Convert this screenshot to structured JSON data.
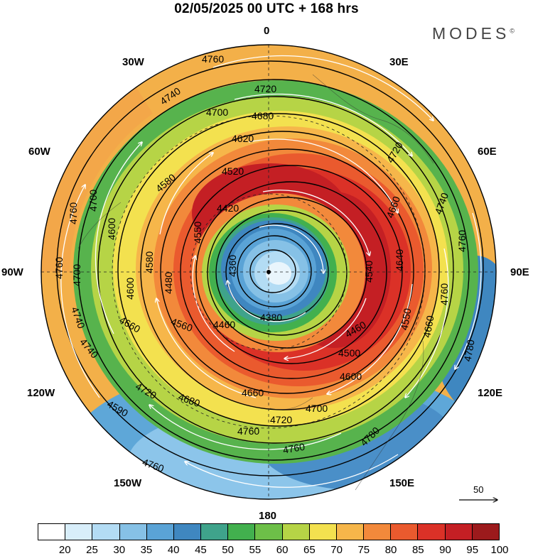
{
  "title": "02/05/2025  00 UTC  + 168 hrs",
  "brand": "MODES",
  "brand_mark": "©",
  "longitudes": {
    "n0": "0",
    "e30": "30E",
    "e60": "60E",
    "e90": "90E",
    "e120": "120E",
    "e150": "150E",
    "s180": "180",
    "w150": "150W",
    "w120": "120W",
    "w90": "90W",
    "w60": "60W",
    "w30": "30W"
  },
  "contour_labels": [
    "4760",
    "4740",
    "4720",
    "4700",
    "4680",
    "4620",
    "4520",
    "4580",
    "4420",
    "4500",
    "4360",
    "4380",
    "4460",
    "4560",
    "4600",
    "4660",
    "4640",
    "4540",
    "4480",
    "4780",
    "4590",
    "4550",
    "4750"
  ],
  "vector_scale": "50",
  "colorbar": {
    "colors": [
      "#ffffff",
      "#d8eefa",
      "#b3dcf4",
      "#86c1e6",
      "#5aa3d6",
      "#3f87c0",
      "#3fa38b",
      "#42b04e",
      "#6dbf48",
      "#b6d446",
      "#f3e14f",
      "#f6b64a",
      "#f2893b",
      "#ea5a2e",
      "#db3127",
      "#c41f24",
      "#9c1a1c"
    ],
    "ticks": [
      "20",
      "25",
      "30",
      "35",
      "40",
      "45",
      "50",
      "55",
      "60",
      "65",
      "70",
      "75",
      "80",
      "85",
      "90",
      "95",
      "100"
    ]
  }
}
